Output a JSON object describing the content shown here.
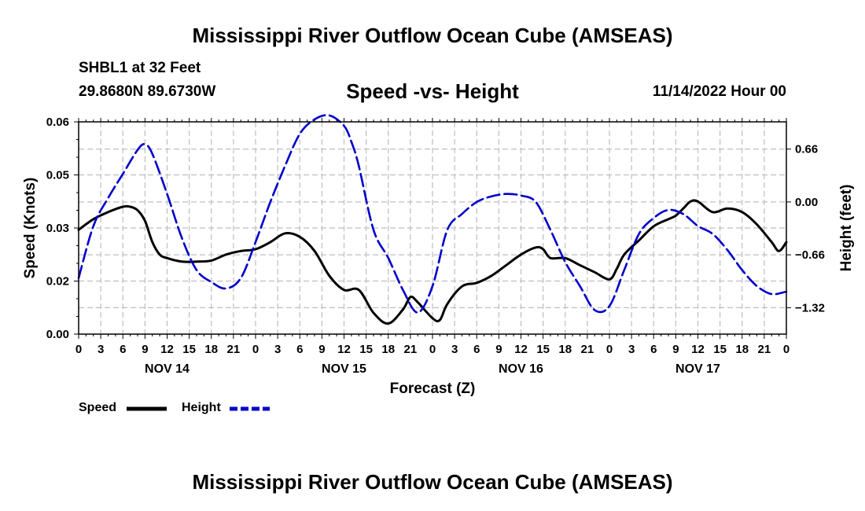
{
  "header": {
    "title": "Mississippi River Outflow Ocean Cube (AMSEAS)",
    "station": "SHBL1 at 32 Feet",
    "coords": "29.8680N  89.6730W",
    "subtitle": "Speed -vs- Height",
    "datetime": "11/14/2022 Hour 00"
  },
  "footer": {
    "title": "Mississippi River Outflow Ocean Cube (AMSEAS)"
  },
  "colors": {
    "speed": "#000000",
    "height": "#0000cc",
    "grid": "#bfbfbf"
  },
  "chart_data": {
    "type": "line",
    "title": "Speed -vs- Height",
    "xlabel": "Forecast (Z)",
    "ylabel": "Speed (Knots)",
    "ylabel_right": "Height (feet)",
    "x_range": [
      0,
      96
    ],
    "ylim": [
      0,
      0.06
    ],
    "ylim_right": [
      -1.65,
      1.0
    ],
    "grid": true,
    "legend_position": "bottom-left",
    "x_tick_hours": [
      0,
      3,
      6,
      9,
      12,
      15,
      18,
      21,
      24,
      27,
      30,
      33,
      36,
      39,
      42,
      45,
      48,
      51,
      54,
      57,
      60,
      63,
      66,
      69,
      72,
      75,
      78,
      81,
      84,
      87,
      90,
      93,
      96
    ],
    "x_tick_labels": [
      "0",
      "3",
      "6",
      "9",
      "12",
      "15",
      "18",
      "21",
      "0",
      "3",
      "6",
      "9",
      "12",
      "15",
      "18",
      "21",
      "0",
      "3",
      "6",
      "9",
      "12",
      "15",
      "18",
      "21",
      "0",
      "3",
      "6",
      "9",
      "12",
      "15",
      "18",
      "21",
      "0"
    ],
    "day_labels": [
      {
        "hour": 12,
        "label": "NOV 14"
      },
      {
        "hour": 36,
        "label": "NOV 15"
      },
      {
        "hour": 60,
        "label": "NOV 16"
      },
      {
        "hour": 84,
        "label": "NOV 17"
      }
    ],
    "y_ticks": [
      0,
      0.015,
      0.03,
      0.045,
      0.06
    ],
    "y_tick_labels": [
      "0.00",
      "0.02",
      "0.03",
      "0.05",
      "0.06"
    ],
    "y_right_ticks": [
      0.66,
      0.0,
      -0.66,
      -1.32
    ],
    "y_right_tick_labels": [
      "0.66",
      "0.00",
      "−0.66",
      "−1.32"
    ],
    "series": [
      {
        "name": "Speed",
        "axis": "left",
        "style": "solid",
        "x": [
          0,
          2,
          4,
          6,
          7,
          8,
          9,
          10,
          11,
          12,
          14,
          16,
          18,
          20,
          22,
          24,
          26,
          28,
          30,
          32,
          34,
          36,
          38,
          40,
          42,
          44,
          45,
          46,
          48,
          49,
          50,
          52,
          54,
          56,
          58,
          60,
          62,
          63,
          64,
          66,
          68,
          70,
          72,
          73,
          74,
          76,
          78,
          80,
          81,
          82,
          83,
          84,
          86,
          88,
          90,
          92,
          94,
          95,
          96
        ],
        "y": [
          0.0295,
          0.0325,
          0.0345,
          0.036,
          0.036,
          0.035,
          0.032,
          0.026,
          0.0225,
          0.0215,
          0.0205,
          0.0205,
          0.0208,
          0.0225,
          0.0235,
          0.024,
          0.026,
          0.0285,
          0.0275,
          0.0235,
          0.0165,
          0.0125,
          0.0125,
          0.006,
          0.003,
          0.007,
          0.0105,
          0.009,
          0.0045,
          0.004,
          0.0085,
          0.0135,
          0.0145,
          0.0165,
          0.0195,
          0.0225,
          0.0245,
          0.024,
          0.0215,
          0.0215,
          0.0195,
          0.0175,
          0.0155,
          0.0185,
          0.0225,
          0.0265,
          0.0305,
          0.0325,
          0.0335,
          0.0355,
          0.0375,
          0.0375,
          0.0345,
          0.0355,
          0.0345,
          0.031,
          0.026,
          0.0235,
          0.026
        ]
      },
      {
        "name": "Height",
        "axis": "right",
        "style": "dashed",
        "x": [
          0,
          2,
          4,
          6,
          8,
          9,
          10,
          12,
          14,
          16,
          18,
          20,
          22,
          24,
          26,
          28,
          30,
          32,
          34,
          36,
          37,
          38,
          40,
          42,
          44,
          46,
          48,
          50,
          52,
          54,
          56,
          58,
          60,
          62,
          64,
          66,
          68,
          70,
          72,
          74,
          76,
          78,
          80,
          82,
          84,
          86,
          88,
          90,
          92,
          94,
          96
        ],
        "y": [
          -0.95,
          -0.3,
          0.05,
          0.35,
          0.65,
          0.72,
          0.6,
          0.1,
          -0.45,
          -0.85,
          -1.0,
          -1.08,
          -0.95,
          -0.5,
          0.0,
          0.45,
          0.85,
          1.03,
          1.08,
          0.95,
          0.75,
          0.45,
          -0.35,
          -0.7,
          -1.1,
          -1.38,
          -1.05,
          -0.35,
          -0.15,
          0.0,
          0.07,
          0.1,
          0.08,
          0.0,
          -0.35,
          -0.75,
          -1.05,
          -1.35,
          -1.3,
          -0.85,
          -0.4,
          -0.2,
          -0.1,
          -0.15,
          -0.3,
          -0.4,
          -0.6,
          -0.85,
          -1.05,
          -1.15,
          -1.12
        ]
      }
    ]
  },
  "axes": {
    "xlabel": "Forecast (Z)",
    "ylabel_left": "Speed (Knots)",
    "ylabel_right": "Height (feet)"
  },
  "legend": [
    {
      "label": "Speed"
    },
    {
      "label": "Height"
    }
  ]
}
